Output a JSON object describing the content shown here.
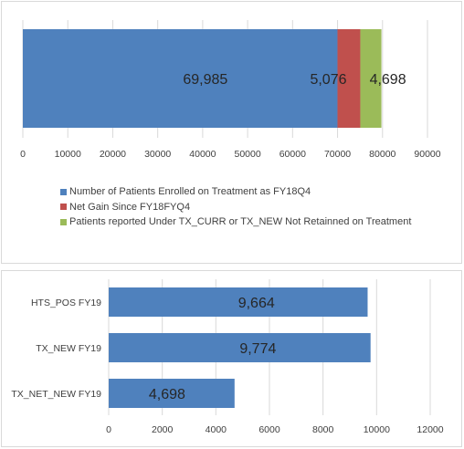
{
  "chart_data": [
    {
      "type": "bar",
      "orientation": "horizontal",
      "stacked": true,
      "categories": [
        ""
      ],
      "series": [
        {
          "name": "Number of Patients Enrolled on Treatment as FY18Q4",
          "values": [
            69985
          ],
          "label": "69,985",
          "color": "#4f81bd"
        },
        {
          "name": "Net Gain Since FY18FYQ4",
          "values": [
            5076
          ],
          "label": "5,076",
          "color": "#c0504d"
        },
        {
          "name": "Patients reported Under TX_CURR or TX_NEW Not Retainned on Treatment",
          "values": [
            4698
          ],
          "label": "4,698",
          "color": "#9bbb59"
        }
      ],
      "xlim": [
        0,
        90000
      ],
      "xticks": [
        "0",
        "10000",
        "20000",
        "30000",
        "40000",
        "50000",
        "60000",
        "70000",
        "80000",
        "90000"
      ],
      "grid": true,
      "legend_position": "bottom"
    },
    {
      "type": "bar",
      "orientation": "horizontal",
      "categories": [
        "HTS_POS FY19",
        "TX_NEW FY19",
        "TX_NET_NEW FY19"
      ],
      "values": [
        9664,
        9774,
        4698
      ],
      "labels": [
        "9,664",
        "9,774",
        "4,698"
      ],
      "color": "#4f81bd",
      "xlim": [
        0,
        12000
      ],
      "xticks": [
        "0",
        "2000",
        "4000",
        "6000",
        "8000",
        "10000",
        "12000"
      ],
      "grid": true
    }
  ]
}
